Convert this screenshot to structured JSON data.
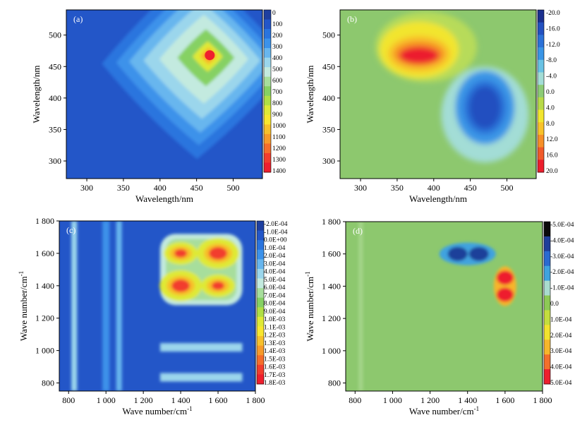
{
  "chart_data": [
    {
      "type": "heatmap",
      "panel_label": "(a)",
      "xlabel": "Wavelength/nm",
      "ylabel": "Wavelength/nm",
      "xlim": [
        272,
        540
      ],
      "ylim": [
        272,
        540
      ],
      "xticks": [
        "300",
        "350",
        "400",
        "450",
        "500"
      ],
      "xtick_values": [
        300,
        350,
        400,
        450,
        500
      ],
      "yticks": [
        "300",
        "350",
        "400",
        "450",
        "500"
      ],
      "ytick_values": [
        300,
        350,
        400,
        450,
        500
      ],
      "colorbar_labels": [
        "0",
        "100",
        "200",
        "300",
        "400",
        "500",
        "600",
        "700",
        "800",
        "900",
        "1000",
        "1100",
        "1200",
        "1300",
        "1400"
      ],
      "colorbar_min": 0,
      "colorbar_max": 1400,
      "features": [
        {
          "x": 468,
          "y": 468,
          "value": 1400,
          "note": "synchronous auto-peak"
        }
      ]
    },
    {
      "type": "heatmap",
      "panel_label": "(b)",
      "xlabel": "Wavelength/nm",
      "ylabel": "Wavelength/nm",
      "xlim": [
        272,
        540
      ],
      "ylim": [
        272,
        540
      ],
      "xticks": [
        "300",
        "350",
        "400",
        "450",
        "500"
      ],
      "xtick_values": [
        300,
        350,
        400,
        450,
        500
      ],
      "yticks": [
        "300",
        "350",
        "400",
        "450",
        "500"
      ],
      "ytick_values": [
        300,
        350,
        400,
        450,
        500
      ],
      "colorbar_labels": [
        "-20.0",
        "-16.0",
        "-12.0",
        "-8.0",
        "-4.0",
        "0.0",
        "4.0",
        "8.0",
        "12.0",
        "16.0",
        "20.0"
      ],
      "colorbar_min": -20,
      "colorbar_max": 20,
      "features": [
        {
          "x": 380,
          "y": 470,
          "value": 20,
          "note": "positive cross-peak"
        },
        {
          "x": 470,
          "y": 385,
          "value": -20,
          "note": "negative cross-peak"
        }
      ]
    },
    {
      "type": "heatmap",
      "panel_label": "(c)",
      "xlabel": "Wave number/cm",
      "ylabel": "Wave number/cm",
      "unit_exponent": "-1",
      "xlim": [
        750,
        1800
      ],
      "ylim": [
        750,
        1800
      ],
      "xticks": [
        "800",
        "1 000",
        "1 200",
        "1 400",
        "1 600",
        "1 800"
      ],
      "xtick_values": [
        800,
        1000,
        1200,
        1400,
        1600,
        1800
      ],
      "yticks": [
        "800",
        "1 000",
        "1 200",
        "1 400",
        "1 600",
        "1 800"
      ],
      "ytick_values": [
        800,
        1000,
        1200,
        1400,
        1600,
        1800
      ],
      "colorbar_labels": [
        "-2.0E-04",
        "-1.0E-04",
        "0.0E+00",
        "1.0E-04",
        "2.0E-04",
        "3.0E-04",
        "4.0E-04",
        "5.0E-04",
        "6.0E-04",
        "7.0E-04",
        "8.0E-04",
        "9.0E-04",
        "1.0E-03",
        "1.1E-03",
        "1.2E-03",
        "1.3E-03",
        "1.4E-03",
        "1.5E-03",
        "1.6E-03",
        "1.7E-03",
        "1.8E-03"
      ],
      "colorbar_min": -0.0002,
      "colorbar_max": 0.0018,
      "features": [
        {
          "x": 1600,
          "y": 1600,
          "value": 0.0018
        },
        {
          "x": 1400,
          "y": 1400,
          "value": 0.0017
        },
        {
          "x": 1400,
          "y": 1600,
          "value": 0.0014
        },
        {
          "x": 1600,
          "y": 1400,
          "value": 0.0014
        }
      ]
    },
    {
      "type": "heatmap",
      "panel_label": "(d)",
      "xlabel": "Wave number/cm",
      "ylabel": "Wave number/cm",
      "unit_exponent": "-1",
      "xlim": [
        750,
        1800
      ],
      "ylim": [
        750,
        1800
      ],
      "xticks": [
        "800",
        "1 000",
        "1 200",
        "1 400",
        "1 600",
        "1 800"
      ],
      "xtick_values": [
        800,
        1000,
        1200,
        1400,
        1600,
        1800
      ],
      "yticks": [
        "800",
        "1 000",
        "1 200",
        "1 400",
        "1 600",
        "1 800"
      ],
      "ytick_values": [
        800,
        1000,
        1200,
        1400,
        1600,
        1800
      ],
      "colorbar_labels": [
        "-5.0E-04",
        "-4.0E-04",
        "-3.0E-04",
        "-2.0E-04",
        "-1.0E-04",
        "0.0",
        "1.0E-04",
        "2.0E-04",
        "3.0E-04",
        "4.0E-04",
        "5.0E-04"
      ],
      "colorbar_min": -0.0005,
      "colorbar_max": 0.0005,
      "features": [
        {
          "x": 1400,
          "y": 1600,
          "value": -0.0004
        },
        {
          "x": 1600,
          "y": 1400,
          "value": 0.0004
        }
      ]
    }
  ]
}
